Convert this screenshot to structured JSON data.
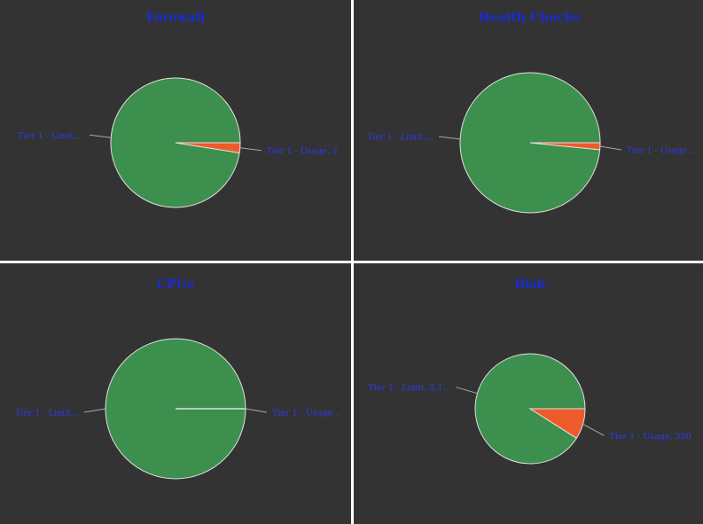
{
  "colors": {
    "panel_background": "#333333",
    "divider": "#ffffff",
    "title": "#1a2bd8",
    "label": "#2a3cf0",
    "leader_line": "#a8a8a8",
    "slice_border": "#e0e0e0",
    "limit_slice": "#3d8f4d",
    "usage_slice": "#ee5b2a"
  },
  "chart_data": [
    {
      "type": "pie",
      "title": "Forewall",
      "slices": [
        {
          "label": "Tier 1 - Limit,...",
          "value": 97.5,
          "color": "#3d8f4d"
        },
        {
          "label": "Tier 1 - Usage, 2",
          "value": 2.5,
          "color": "#ee5b2a"
        }
      ]
    },
    {
      "type": "pie",
      "title": "Health Checks",
      "slices": [
        {
          "label": "Tier 1 - Limit,...",
          "value": 98.4,
          "color": "#3d8f4d"
        },
        {
          "label": "Tier 1 - Usage...",
          "value": 1.6,
          "color": "#ee5b2a"
        }
      ]
    },
    {
      "type": "pie",
      "title": "CPUs",
      "slices": [
        {
          "label": "Tier 1 - Limit...",
          "value": 100,
          "color": "#3d8f4d"
        },
        {
          "label": "Tier 1 - Usage...",
          "value": 0,
          "color": "#ee5b2a"
        }
      ]
    },
    {
      "type": "pie",
      "title": "Disk",
      "slices": [
        {
          "label": "Tier 1 - Limit, 5,1...",
          "value": 91,
          "color": "#3d8f4d"
        },
        {
          "label": "Tier 1 - Usage, 500",
          "value": 9,
          "color": "#ee5b2a"
        }
      ]
    }
  ]
}
